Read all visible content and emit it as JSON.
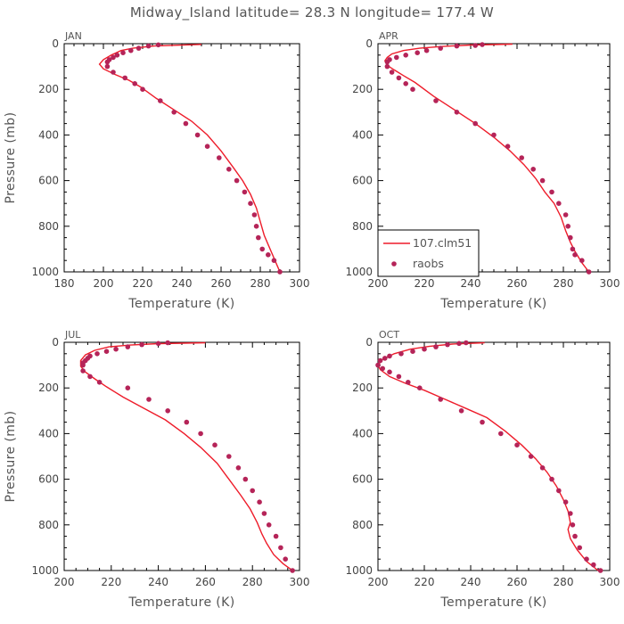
{
  "title": "Midway_Island  latitude= 28.3 N longitude= 177.4 W",
  "legend": {
    "model_label": "107.clm51",
    "obs_label": "raobs"
  },
  "colors": {
    "model": "#ee1c2a",
    "obs": "#b52458",
    "frame": "#000000",
    "text": "#555555"
  },
  "chart_data": [
    {
      "type": "line",
      "panel_label": "JAN",
      "xlabel": "Temperature (K)",
      "ylabel": "Pressure (mb)",
      "xlim": [
        180,
        300
      ],
      "ylim": [
        1000,
        0
      ],
      "x_ticks": [
        180,
        200,
        220,
        240,
        260,
        280,
        300
      ],
      "y_ticks": [
        0,
        200,
        400,
        600,
        800,
        1000
      ],
      "legend": false,
      "series": [
        {
          "name": "107.clm51",
          "kind": "line",
          "x": [
            250,
            226,
            215,
            209,
            204,
            200,
            198,
            200,
            206,
            213,
            219,
            227,
            236,
            245,
            253,
            260,
            266,
            271,
            275,
            278,
            280,
            282,
            284,
            286,
            288,
            290
          ],
          "y": [
            3,
            10,
            20,
            30,
            50,
            70,
            90,
            110,
            135,
            160,
            190,
            240,
            290,
            340,
            400,
            470,
            540,
            600,
            660,
            720,
            780,
            840,
            880,
            920,
            960,
            1000
          ]
        },
        {
          "name": "raobs",
          "kind": "points",
          "x": [
            228,
            223,
            218,
            214,
            210,
            207,
            205,
            203,
            202,
            202,
            205,
            211,
            216,
            220,
            229,
            236,
            242,
            248,
            253,
            259,
            264,
            268,
            272,
            275,
            277,
            278,
            279,
            281,
            284,
            287,
            290
          ],
          "y": [
            5,
            10,
            20,
            30,
            40,
            50,
            60,
            70,
            80,
            100,
            125,
            150,
            175,
            200,
            250,
            300,
            350,
            400,
            450,
            500,
            550,
            600,
            650,
            700,
            750,
            800,
            850,
            900,
            925,
            950,
            1000
          ]
        }
      ]
    },
    {
      "type": "line",
      "panel_label": "APR",
      "xlabel": "Temperature (K)",
      "ylabel": "",
      "xlim": [
        200,
        300
      ],
      "ylim": [
        1000,
        0
      ],
      "x_ticks": [
        200,
        220,
        240,
        260,
        280,
        300
      ],
      "y_ticks": [
        0,
        200,
        400,
        600,
        800,
        1000
      ],
      "legend": true,
      "series": [
        {
          "name": "107.clm51",
          "kind": "line",
          "x": [
            258,
            240,
            228,
            218,
            211,
            206,
            204,
            203,
            204,
            207,
            211,
            216,
            224,
            233,
            242,
            250,
            257,
            263,
            268,
            272,
            276,
            279,
            281,
            283,
            285,
            288,
            291
          ],
          "y": [
            2,
            6,
            12,
            20,
            30,
            45,
            60,
            75,
            95,
            115,
            140,
            170,
            230,
            290,
            350,
            410,
            470,
            530,
            590,
            650,
            700,
            760,
            820,
            870,
            910,
            960,
            1000
          ]
        },
        {
          "name": "raobs",
          "kind": "points",
          "x": [
            245,
            242,
            234,
            227,
            221,
            217,
            212,
            208,
            205,
            204,
            204,
            206,
            209,
            212,
            215,
            225,
            234,
            242,
            250,
            256,
            262,
            267,
            271,
            275,
            278,
            281,
            282,
            283,
            284,
            285,
            288,
            291
          ],
          "y": [
            4,
            8,
            10,
            20,
            30,
            40,
            50,
            60,
            70,
            80,
            100,
            125,
            150,
            175,
            200,
            250,
            300,
            350,
            400,
            450,
            500,
            550,
            600,
            650,
            700,
            750,
            800,
            850,
            900,
            925,
            950,
            1000
          ]
        }
      ]
    },
    {
      "type": "line",
      "panel_label": "JUL",
      "xlabel": "Temperature (K)",
      "ylabel": "Pressure (mb)",
      "xlim": [
        200,
        300
      ],
      "ylim": [
        1000,
        0
      ],
      "x_ticks": [
        200,
        220,
        240,
        260,
        280,
        300
      ],
      "y_ticks": [
        0,
        200,
        400,
        600,
        800,
        1000
      ],
      "legend": false,
      "series": [
        {
          "name": "107.clm51",
          "kind": "line",
          "x": [
            260,
            240,
            228,
            219,
            213,
            209,
            207,
            207,
            209,
            213,
            218,
            225,
            234,
            243,
            251,
            258,
            265,
            270,
            275,
            279,
            282,
            284,
            286,
            289,
            293,
            297
          ],
          "y": [
            2,
            6,
            12,
            20,
            35,
            55,
            80,
            105,
            130,
            160,
            195,
            240,
            290,
            340,
            400,
            460,
            530,
            600,
            670,
            730,
            790,
            840,
            880,
            930,
            970,
            1000
          ]
        },
        {
          "name": "raobs",
          "kind": "points",
          "x": [
            244,
            240,
            233,
            227,
            222,
            218,
            214,
            211,
            210,
            209,
            208,
            208,
            208,
            211,
            215,
            227,
            236,
            244,
            252,
            258,
            264,
            270,
            274,
            277,
            280,
            283,
            285,
            287,
            290,
            292,
            294,
            297
          ],
          "y": [
            2,
            5,
            10,
            20,
            30,
            40,
            50,
            60,
            70,
            80,
            90,
            100,
            125,
            150,
            175,
            200,
            250,
            300,
            350,
            400,
            450,
            500,
            550,
            600,
            650,
            700,
            750,
            800,
            850,
            900,
            950,
            1000
          ]
        }
      ]
    },
    {
      "type": "line",
      "panel_label": "OCT",
      "xlabel": "Temperature (K)",
      "ylabel": "",
      "xlim": [
        200,
        300
      ],
      "ylim": [
        1000,
        0
      ],
      "x_ticks": [
        200,
        220,
        240,
        260,
        280,
        300
      ],
      "y_ticks": [
        0,
        200,
        400,
        600,
        800,
        1000
      ],
      "legend": false,
      "series": [
        {
          "name": "107.clm51",
          "kind": "line",
          "x": [
            246,
            232,
            222,
            214,
            207,
            202,
            200,
            201,
            205,
            212,
            220,
            229,
            238,
            247,
            255,
            262,
            268,
            273,
            277,
            280,
            282,
            283,
            282,
            283,
            286,
            290,
            295
          ],
          "y": [
            2,
            8,
            18,
            30,
            50,
            75,
            100,
            120,
            150,
            180,
            210,
            250,
            290,
            330,
            390,
            450,
            510,
            570,
            630,
            690,
            740,
            790,
            820,
            860,
            910,
            960,
            1000
          ]
        },
        {
          "name": "raobs",
          "kind": "points",
          "x": [
            238,
            235,
            230,
            225,
            220,
            215,
            210,
            205,
            203,
            201,
            200,
            202,
            205,
            209,
            213,
            218,
            227,
            236,
            245,
            253,
            260,
            266,
            271,
            275,
            278,
            281,
            283,
            284,
            285,
            287,
            290,
            293,
            296
          ],
          "y": [
            2,
            5,
            10,
            20,
            30,
            40,
            50,
            60,
            70,
            80,
            100,
            115,
            130,
            150,
            175,
            200,
            250,
            300,
            350,
            400,
            450,
            500,
            550,
            600,
            650,
            700,
            750,
            800,
            850,
            900,
            950,
            975,
            1000
          ]
        }
      ]
    }
  ]
}
